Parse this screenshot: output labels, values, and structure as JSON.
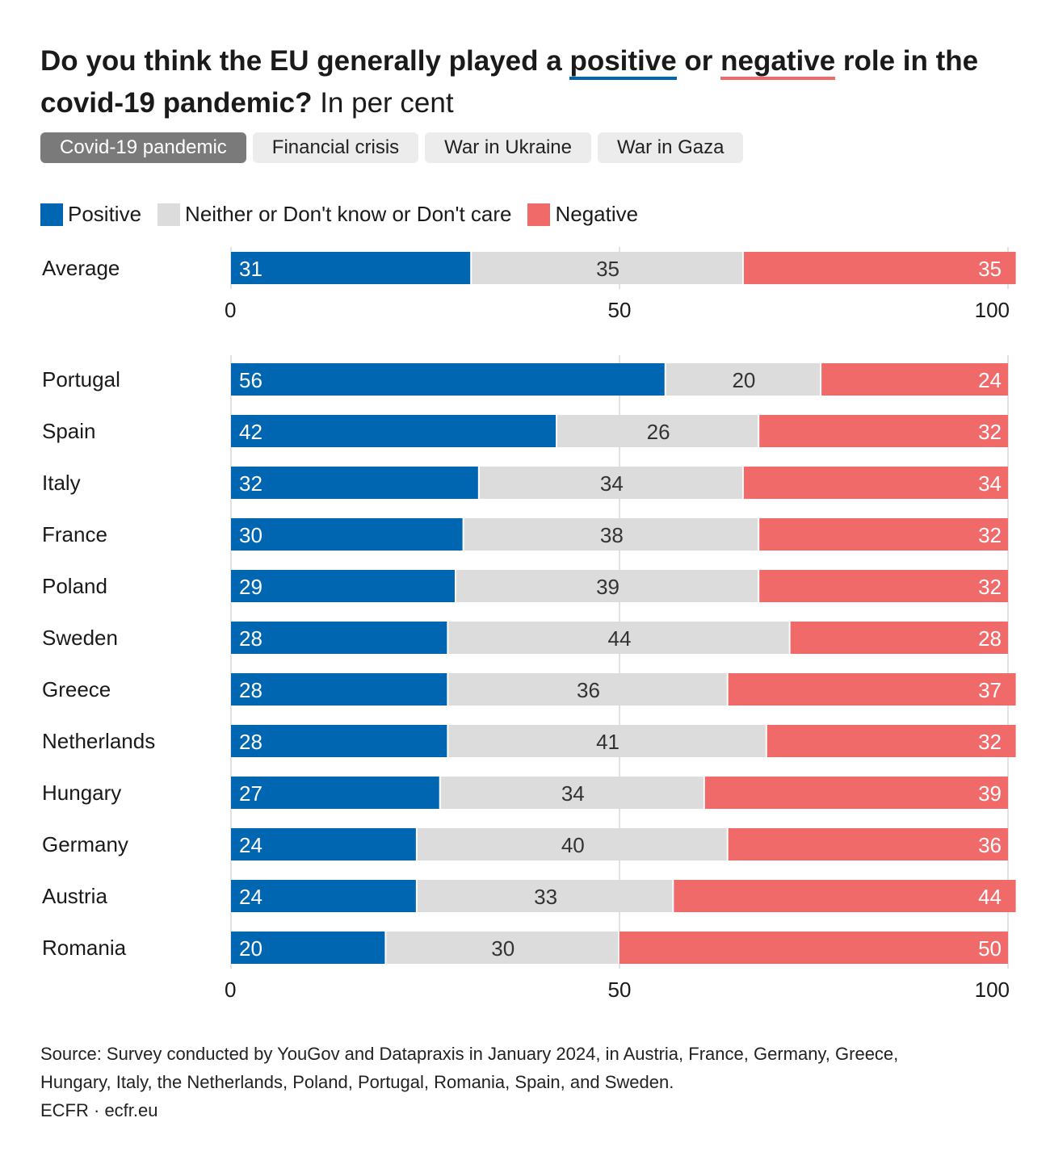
{
  "title": {
    "part1": "Do you think the EU generally played a ",
    "positive_word": "positive",
    "part2": " or ",
    "negative_word": "negative",
    "part3": " role in the covid-19 pandemic?",
    "subtitle": " In per cent"
  },
  "tabs": [
    {
      "label": "Covid-19 pandemic",
      "active": true
    },
    {
      "label": "Financial crisis",
      "active": false
    },
    {
      "label": "War in Ukraine",
      "active": false
    },
    {
      "label": "War in Gaza",
      "active": false
    }
  ],
  "legend": {
    "positive": "Positive",
    "neither": "Neither or Don't know or Don't care",
    "negative": "Negative"
  },
  "colors": {
    "positive": "#0066b1",
    "neither": "#dcdcdc",
    "negative": "#f06a6a"
  },
  "chart_data": {
    "type": "bar",
    "orientation": "horizontal",
    "stacked": true,
    "title": "Do you think the EU generally played a positive or negative role in the covid-19 pandemic? In per cent",
    "series_names": [
      "Positive",
      "Neither or Don't know or Don't care",
      "Negative"
    ],
    "xlim": [
      0,
      100
    ],
    "xticks": [
      "0",
      "50",
      "100"
    ],
    "average": {
      "category": "Average",
      "values": [
        31,
        35,
        35
      ]
    },
    "categories": [
      "Portugal",
      "Spain",
      "Italy",
      "France",
      "Poland",
      "Sweden",
      "Greece",
      "Netherlands",
      "Hungary",
      "Germany",
      "Austria",
      "Romania"
    ],
    "series": [
      {
        "name": "Positive",
        "values": [
          56,
          42,
          32,
          30,
          29,
          28,
          28,
          28,
          27,
          24,
          24,
          20
        ]
      },
      {
        "name": "Neither or Don't know or Don't care",
        "values": [
          20,
          26,
          34,
          38,
          39,
          44,
          36,
          41,
          34,
          40,
          33,
          30
        ]
      },
      {
        "name": "Negative",
        "values": [
          24,
          32,
          34,
          32,
          32,
          28,
          37,
          32,
          39,
          36,
          44,
          50
        ]
      }
    ]
  },
  "source": {
    "line1": "Source: Survey conducted by YouGov and Datapraxis in January 2024, in Austria, France, Germany, Greece,",
    "line2": "Hungary, Italy, the Netherlands, Poland, Portugal, Romania, Spain, and Sweden.",
    "credit": "ECFR · ecfr.eu"
  }
}
